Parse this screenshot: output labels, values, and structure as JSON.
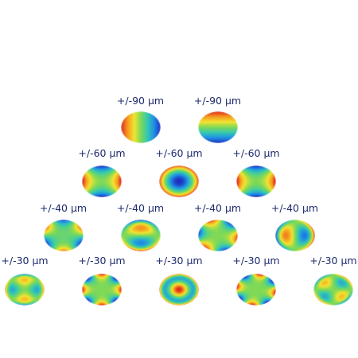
{
  "rows": [
    {
      "items": [
        {
          "label": "+/-90 µm",
          "mode": "tilt-horizontal"
        },
        {
          "label": "+/-90 µm",
          "mode": "tilt-vertical"
        }
      ]
    },
    {
      "items": [
        {
          "label": "+/-60 µm",
          "mode": "astigmatism-oblique"
        },
        {
          "label": "+/-60 µm",
          "mode": "defocus"
        },
        {
          "label": "+/-60 µm",
          "mode": "astigmatism-vertical"
        }
      ]
    },
    {
      "items": [
        {
          "label": "+/-40 µm",
          "mode": "trefoil-vertical"
        },
        {
          "label": "+/-40 µm",
          "mode": "coma-vertical"
        },
        {
          "label": "+/-40 µm",
          "mode": "coma-horizontal"
        },
        {
          "label": "+/-40 µm",
          "mode": "trefoil-oblique"
        }
      ]
    },
    {
      "items": [
        {
          "label": "+/-30 µm",
          "mode": "quadrafoil-vertical"
        },
        {
          "label": "+/-30 µm",
          "mode": "secondary-astigmatism-oblique"
        },
        {
          "label": "+/-30 µm",
          "mode": "spherical"
        },
        {
          "label": "+/-30 µm",
          "mode": "secondary-astigmatism-vertical"
        },
        {
          "label": "+/-30 µm",
          "mode": "quadrafoil-oblique"
        }
      ]
    }
  ],
  "colors": {
    "label": "#1d2a6e",
    "scale": [
      "#1e2fbf",
      "#1f8fe6",
      "#35c9b0",
      "#7ed957",
      "#f2e431",
      "#f59a1e",
      "#e0261d"
    ]
  }
}
